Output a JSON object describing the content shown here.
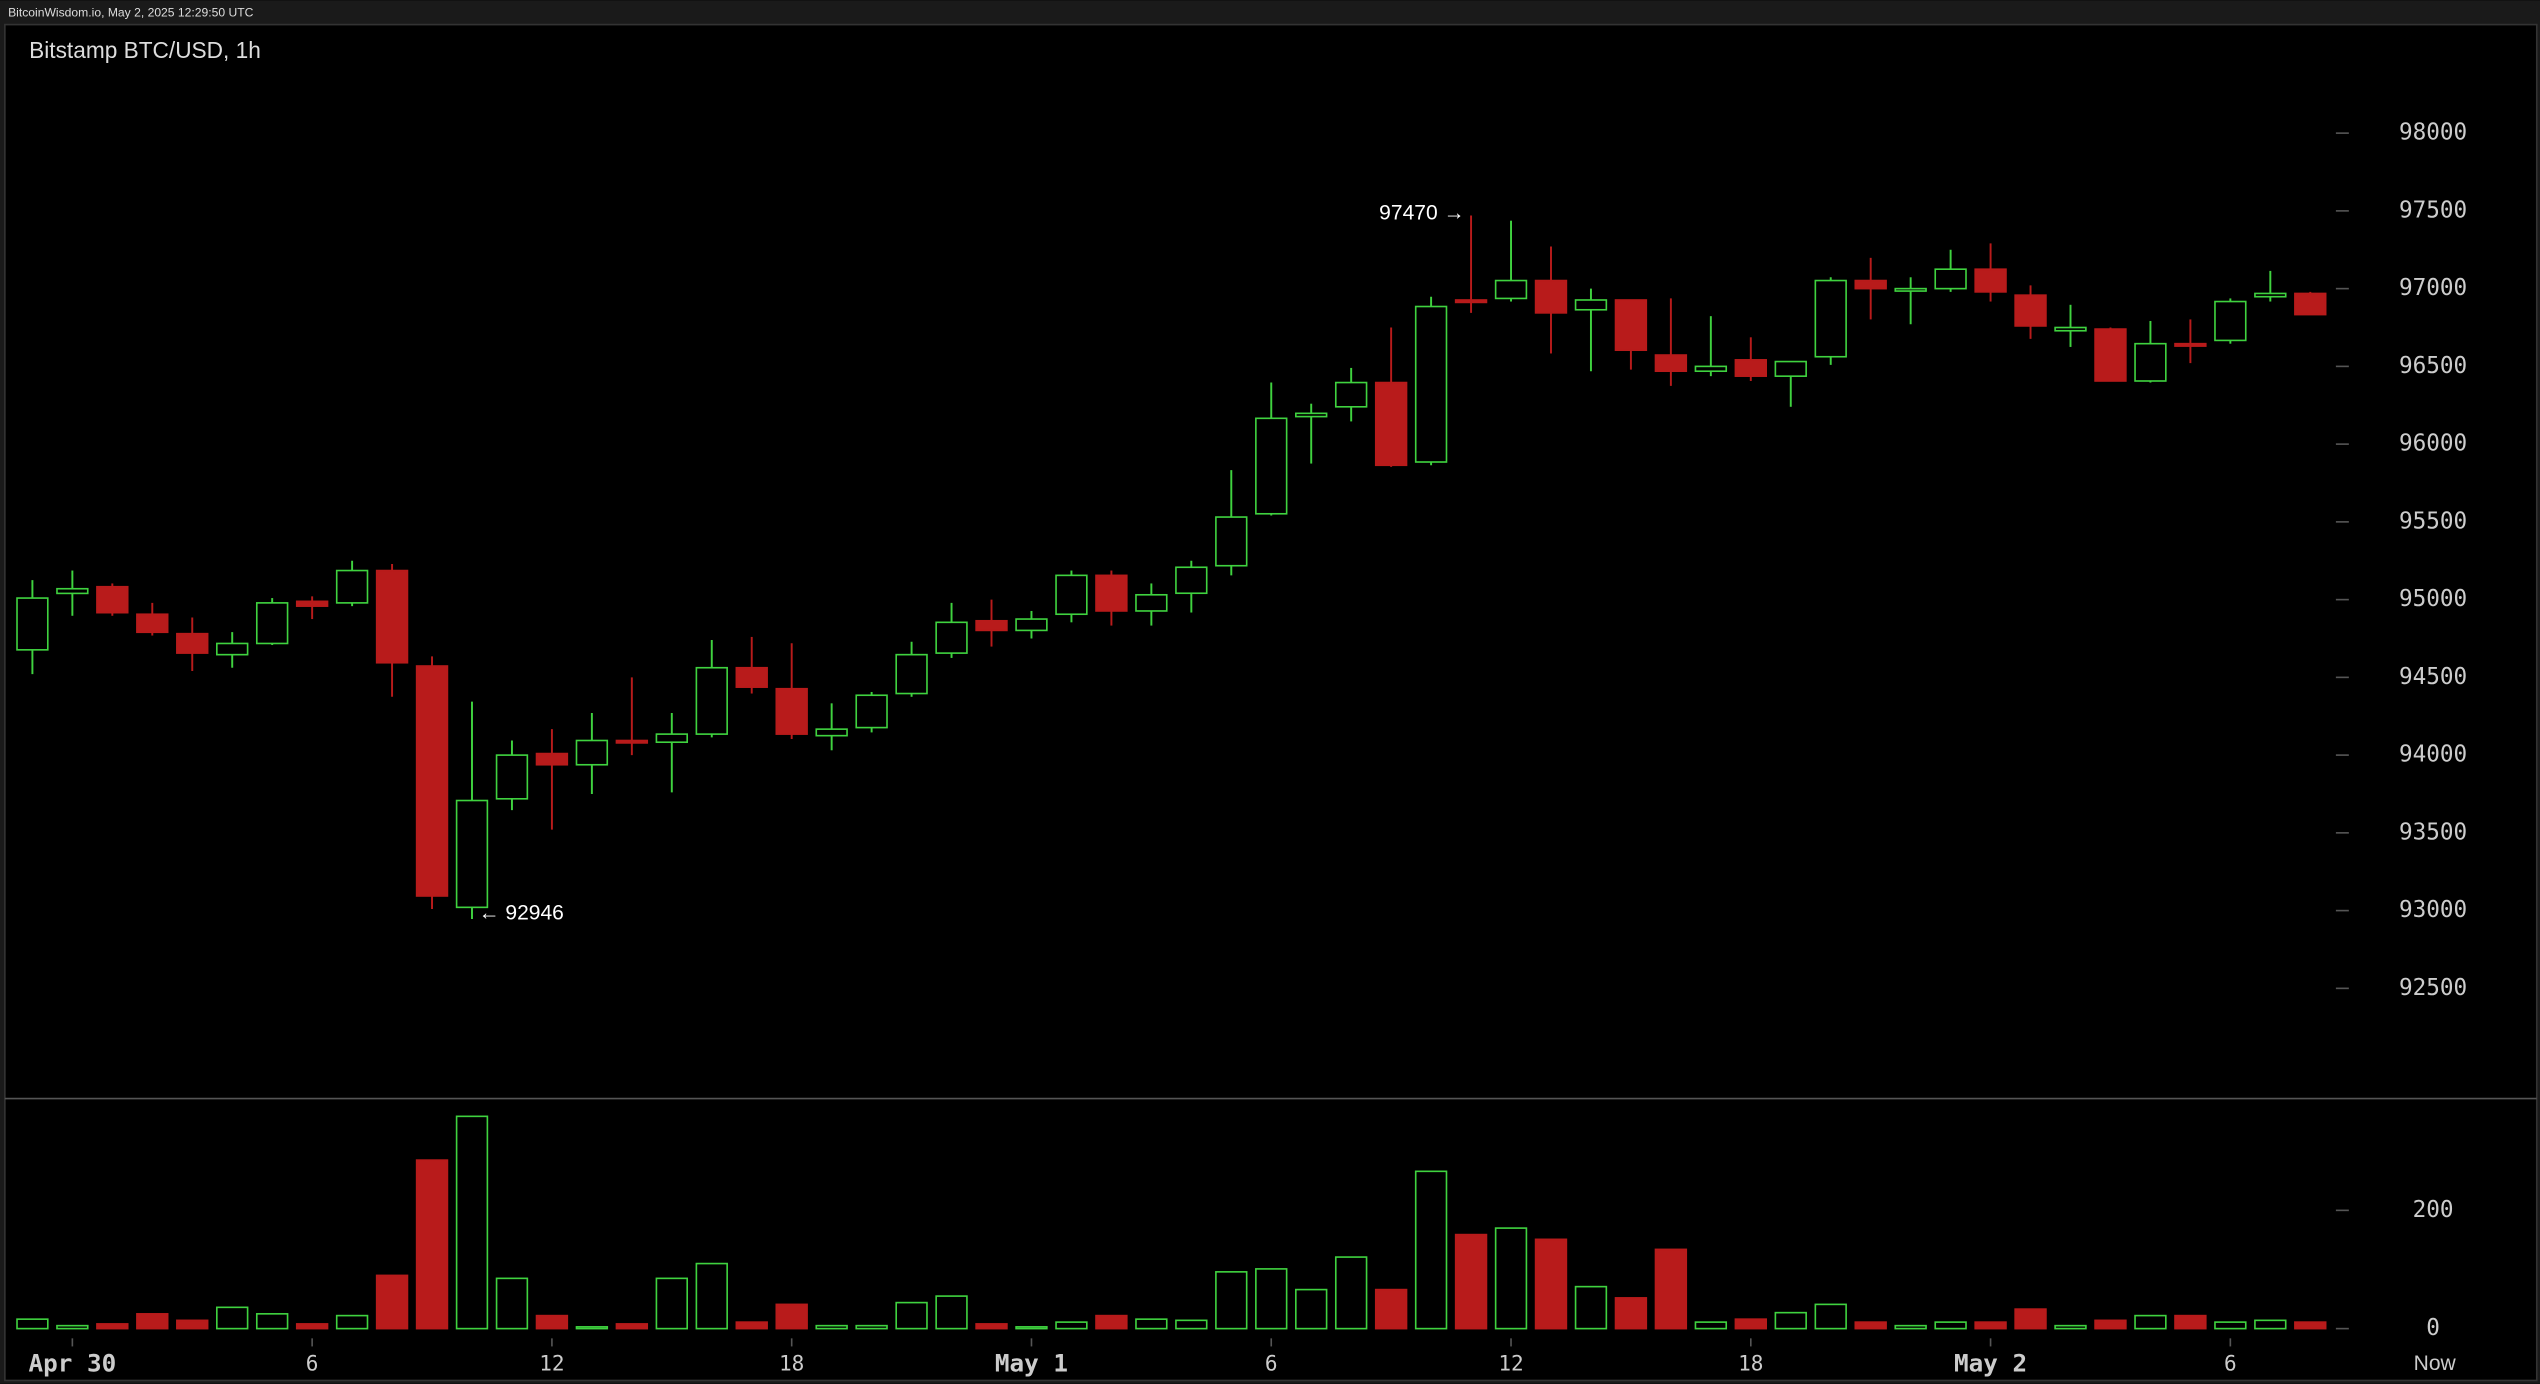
{
  "chart_data": {
    "type": "candlestick",
    "header": "BitcoinWisdom.io, May 2, 2025 12:29:50 UTC",
    "title": "Bitstamp BTC/USD, 1h",
    "now_label": "Now",
    "up_color": "#3fd23f",
    "down_color": "#b81b1b",
    "categories": [
      null,
      "Apr 30",
      null,
      null,
      null,
      null,
      null,
      "6",
      null,
      null,
      null,
      null,
      null,
      "12",
      null,
      null,
      null,
      null,
      null,
      "18",
      null,
      null,
      null,
      null,
      null,
      "May 1",
      null,
      null,
      null,
      null,
      null,
      "6",
      null,
      null,
      null,
      null,
      null,
      "12",
      null,
      null,
      null,
      null,
      null,
      "18",
      null,
      null,
      null,
      null,
      null,
      "May 2",
      null,
      null,
      null,
      null,
      null,
      "6",
      null,
      null
    ],
    "open": [
      94677,
      95040,
      95083,
      94906,
      94781,
      94646,
      94718,
      94989,
      94979,
      95187,
      94573,
      93021,
      93719,
      94010,
      93938,
      94094,
      94083,
      94135,
      94562,
      94427,
      94125,
      94177,
      94396,
      94656,
      94864,
      94802,
      94906,
      95156,
      94927,
      95041,
      95218,
      95552,
      96177,
      96240,
      96396,
      95885,
      96927,
      96937,
      97052,
      96864,
      96927,
      96573,
      96469,
      96542,
      96437,
      96562,
      97052,
      96989,
      97000,
      97125,
      96958,
      96729,
      96740,
      96406,
      96646,
      96667,
      96948,
      96969
    ],
    "high": [
      95125,
      95187,
      95104,
      94979,
      94885,
      94791,
      95010,
      95021,
      95250,
      95229,
      94635,
      94344,
      94094,
      94167,
      94271,
      94500,
      94271,
      94740,
      94760,
      94719,
      94333,
      94406,
      94729,
      94979,
      95000,
      94927,
      95187,
      95187,
      95104,
      95250,
      95833,
      96396,
      96260,
      96490,
      96750,
      96948,
      97470,
      97437,
      97271,
      97000,
      96927,
      96937,
      96823,
      96687,
      96531,
      97073,
      97198,
      97073,
      97250,
      97291,
      97021,
      96896,
      96750,
      96792,
      96802,
      96937,
      97114,
      96979
    ],
    "low": [
      94521,
      94896,
      94896,
      94769,
      94541,
      94562,
      94708,
      94875,
      94958,
      94375,
      93010,
      92946,
      93646,
      93521,
      93750,
      94000,
      93760,
      94114,
      94396,
      94104,
      94031,
      94146,
      94375,
      94625,
      94698,
      94750,
      94854,
      94833,
      94833,
      94917,
      95156,
      95541,
      95875,
      96146,
      95854,
      95864,
      96844,
      96917,
      96583,
      96469,
      96479,
      96375,
      96437,
      96406,
      96240,
      96510,
      96802,
      96771,
      96979,
      96917,
      96677,
      96625,
      96406,
      96396,
      96521,
      96646,
      96917,
      96833
    ],
    "close": [
      95010,
      95070,
      94916,
      94790,
      94656,
      94718,
      94979,
      94958,
      95187,
      94594,
      93094,
      93708,
      94000,
      93938,
      94094,
      94090,
      94135,
      94562,
      94437,
      94135,
      94167,
      94385,
      94646,
      94854,
      94802,
      94875,
      95156,
      94927,
      95031,
      95208,
      95531,
      96166,
      96198,
      96396,
      95864,
      96885,
      96917,
      97052,
      96844,
      96927,
      96604,
      96469,
      96500,
      96437,
      96531,
      97052,
      97000,
      97000,
      97125,
      96979,
      96760,
      96750,
      96406,
      96646,
      96635,
      96917,
      96969,
      96833
    ],
    "volume": [
      16,
      5,
      8,
      25,
      14,
      36,
      25,
      8,
      22,
      90,
      285,
      359,
      85,
      22,
      3,
      8,
      85,
      110,
      11,
      41,
      5,
      5,
      44,
      55,
      8,
      3,
      11,
      22,
      16,
      14,
      96,
      101,
      66,
      121,
      66,
      266,
      159,
      170,
      151,
      71,
      52,
      134,
      11,
      16,
      27,
      41,
      11,
      5,
      11,
      11,
      33,
      5,
      14,
      22,
      22,
      11,
      14,
      11
    ],
    "ylim": [
      91791,
      98698
    ],
    "yticks": [
      92500,
      93000,
      93500,
      94000,
      94500,
      95000,
      95500,
      96000,
      96500,
      97000,
      97500,
      98000
    ],
    "volume_ylim": [
      0,
      389
    ],
    "volume_yticks": [
      0,
      200
    ],
    "annotations": {
      "high": "97470 →",
      "low": "← 92946"
    }
  }
}
